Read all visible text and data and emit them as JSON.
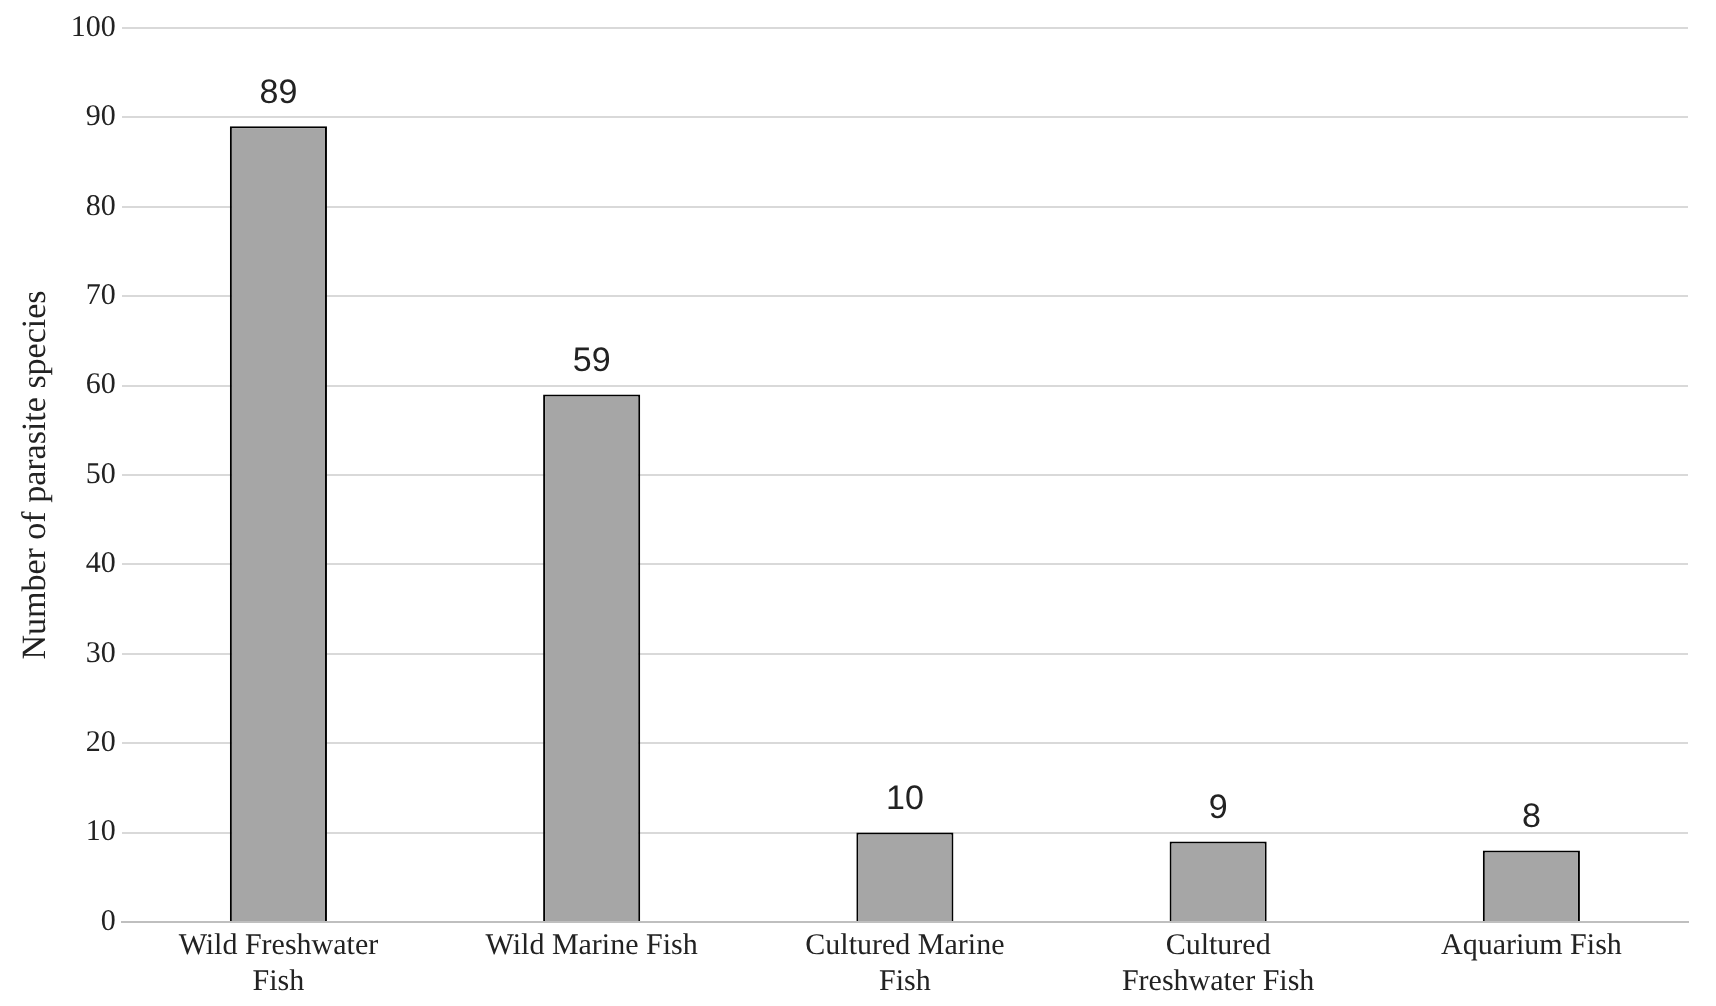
{
  "chart_data": {
    "type": "bar",
    "ylabel": "Number of parasite species",
    "categories": [
      "Wild Freshwater Fish",
      "Wild Marine Fish",
      "Cultured Marine Fish",
      "Cultured Freshwater Fish",
      "Aquarium Fish"
    ],
    "values": [
      89,
      59,
      10,
      9,
      8
    ],
    "color": "#a6a6a6",
    "ylim": [
      0,
      100
    ],
    "yticks": [
      0,
      10,
      20,
      30,
      40,
      50,
      60,
      70,
      80,
      90,
      100
    ],
    "grid": "y",
    "data_labels": true,
    "legend": false
  }
}
